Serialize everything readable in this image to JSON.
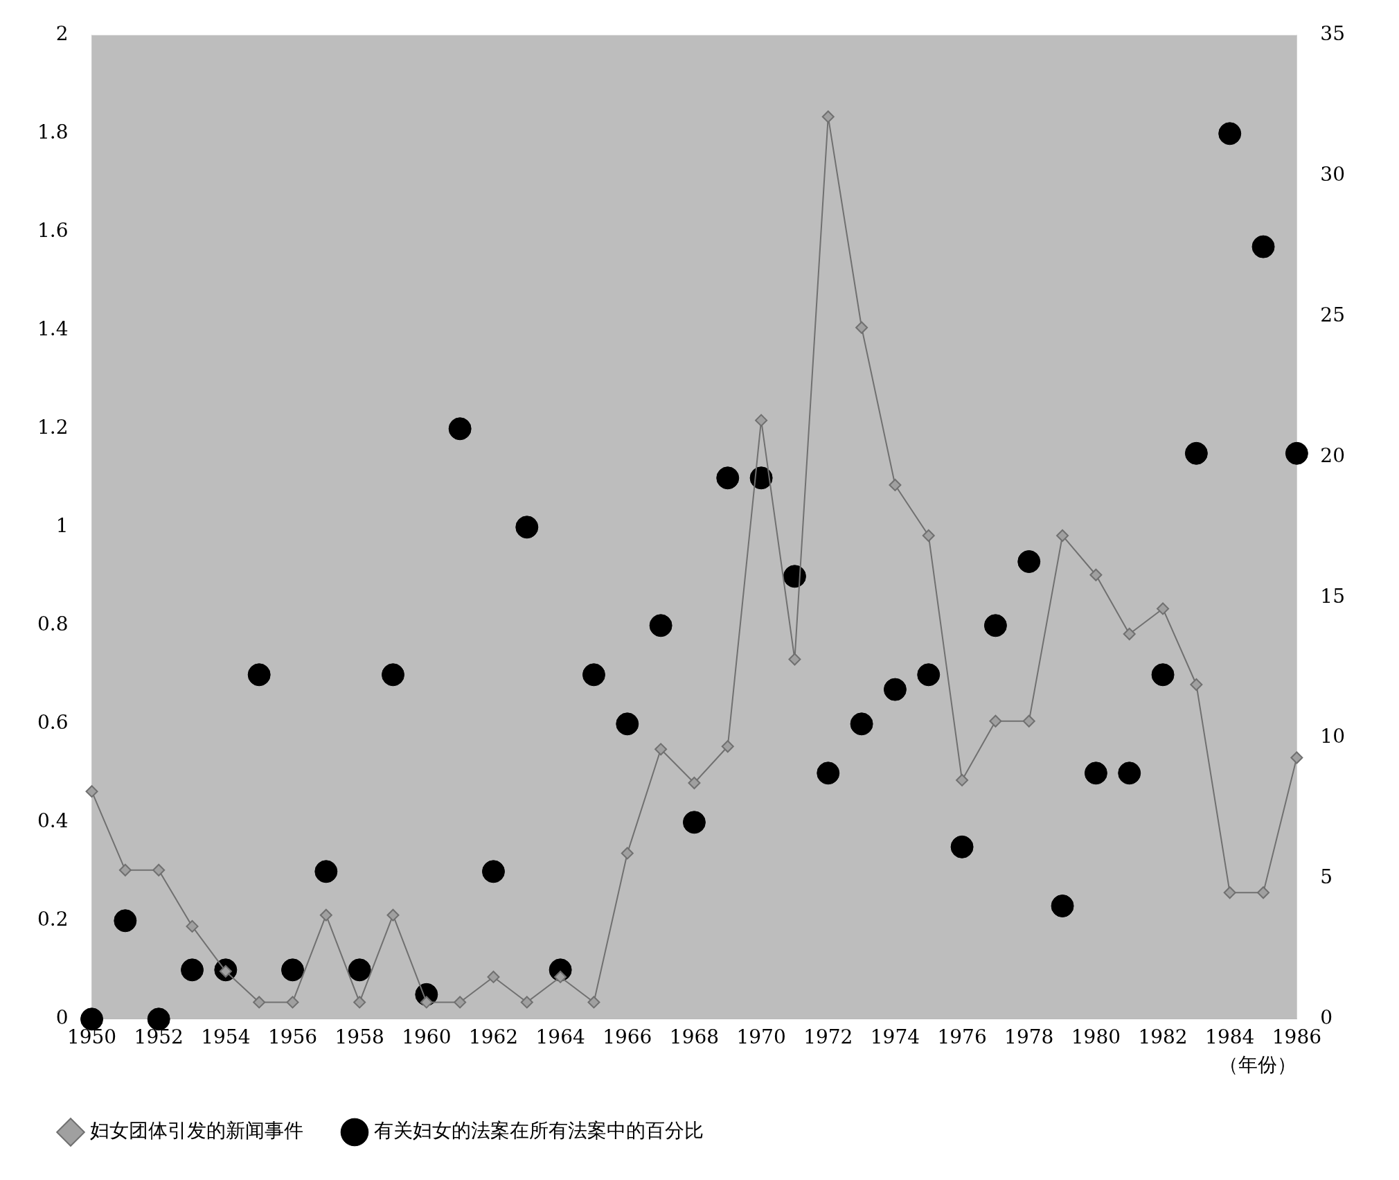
{
  "chart_data": {
    "type": "scatter",
    "xlabel": "（年份）",
    "x": [
      1950,
      1951,
      1952,
      1953,
      1954,
      1955,
      1956,
      1957,
      1958,
      1959,
      1960,
      1961,
      1962,
      1963,
      1964,
      1965,
      1966,
      1967,
      1968,
      1969,
      1970,
      1971,
      1972,
      1973,
      1974,
      1975,
      1976,
      1977,
      1978,
      1979,
      1980,
      1981,
      1982,
      1983,
      1984,
      1985,
      1986
    ],
    "series": [
      {
        "name": "有关妇女的法案在所有法案中的百分比",
        "type": "scatter",
        "axis": "y",
        "marker": "circle",
        "color": "#000000",
        "values": [
          0,
          0.2,
          0,
          0.1,
          0.1,
          0.7,
          0.1,
          0.3,
          0.1,
          0.7,
          0.05,
          1.2,
          0.3,
          1.0,
          0.1,
          0.7,
          0.6,
          0.8,
          0.4,
          1.1,
          1.1,
          0.9,
          0.5,
          0.6,
          0.67,
          0.7,
          0.35,
          0.8,
          0.93,
          0.23,
          0.5,
          0.5,
          0.7,
          1.15,
          1.8,
          1.57,
          1.15
        ]
      },
      {
        "name": "妇女团体引发的新闻事件",
        "type": "line",
        "axis": "y2",
        "marker": "diamond",
        "line_style": "solid",
        "color": "#707070",
        "values": [
          8.1,
          5.3,
          5.3,
          3.3,
          1.7,
          0.6,
          0.6,
          3.7,
          0.6,
          3.7,
          0.6,
          0.6,
          1.5,
          0.6,
          1.5,
          0.6,
          5.9,
          9.6,
          8.4,
          9.7,
          21.3,
          12.8,
          32.1,
          24.6,
          19,
          17.2,
          8.5,
          10.6,
          10.6,
          17.2,
          15.8,
          13.7,
          14.6,
          11.9,
          4.5,
          4.5,
          9.3
        ]
      }
    ],
    "xlim": [
      1950,
      1986
    ],
    "xticks": [
      1950,
      1952,
      1954,
      1956,
      1958,
      1960,
      1962,
      1964,
      1966,
      1968,
      1970,
      1972,
      1974,
      1976,
      1978,
      1980,
      1982,
      1984,
      1986
    ],
    "ylim": [
      0,
      2
    ],
    "yticks": [
      0,
      0.2,
      0.4,
      0.6,
      0.8,
      1,
      1.2,
      1.4,
      1.6,
      1.8,
      2
    ],
    "y2lim": [
      0,
      35
    ],
    "y2ticks": [
      0,
      5,
      10,
      15,
      20,
      25,
      30,
      35
    ],
    "grid": false,
    "legend": "bottom left"
  }
}
